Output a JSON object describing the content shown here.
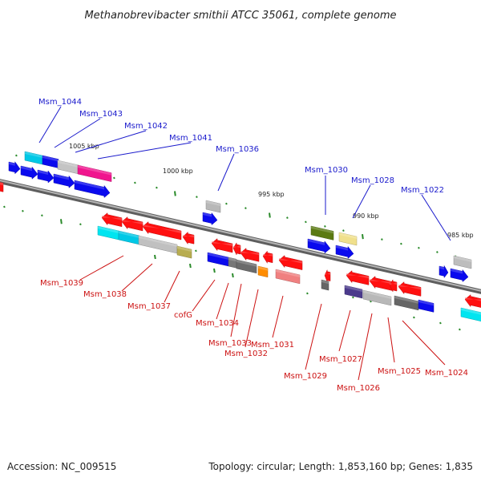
{
  "title": "Methanobrevibacter smithii ATCC 35061, complete genome",
  "footer": {
    "accession": "Accession: NC_009515",
    "summary": "Topology: circular; Length: 1,853,160 bp; Genes: 1,835"
  },
  "scale_labels": [
    "1005 kbp",
    "1000 kbp",
    "995 kbp",
    "990 kbp",
    "985 kbp"
  ],
  "colors": {
    "backbone": "#8a8a8a",
    "forward_label": "#1a1acc",
    "reverse_label": "#cc1111",
    "tick": "#2a8a2a"
  },
  "forward_labels": [
    "Msm_1044",
    "Msm_1043",
    "Msm_1042",
    "Msm_1041",
    "Msm_1036",
    "Msm_1030",
    "Msm_1028",
    "Msm_1022"
  ],
  "reverse_labels": [
    "Msm_1039",
    "Msm_1038",
    "Msm_1037",
    "cofG",
    "Msm_1034",
    "Msm_1033",
    "Msm_1032",
    "Msm_1031",
    "Msm_1029",
    "Msm_1027",
    "Msm_1026",
    "Msm_1025",
    "Msm_1024"
  ]
}
